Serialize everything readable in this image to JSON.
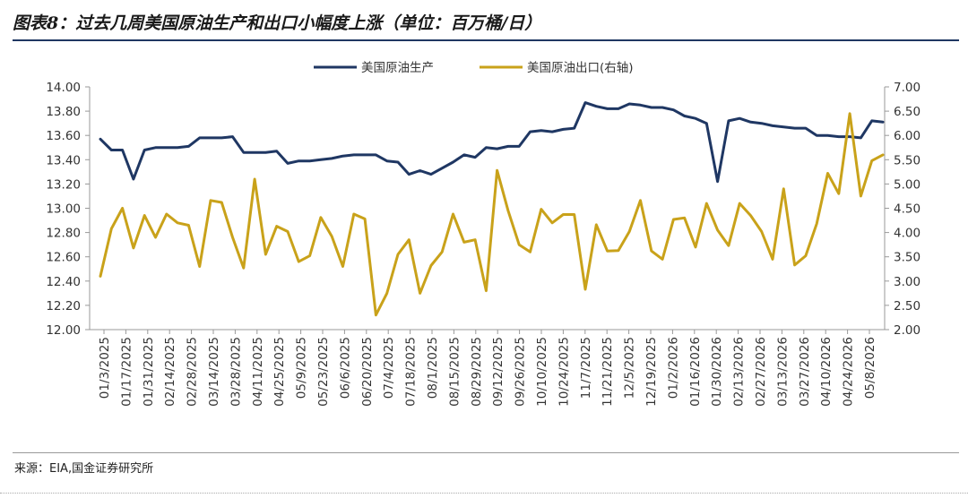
{
  "header": {
    "title": "图表8：过去几周美国原油生产和出口小幅度上涨（单位：百万桶/日）"
  },
  "footer": {
    "source": "来源：EIA,国金证券研究所"
  },
  "chart_data": {
    "type": "line",
    "legend_position": "top",
    "grid": false,
    "x_tick_labels": [
      "01/3/2025",
      "01/17/2025",
      "01/31/2025",
      "02/14/2025",
      "02/28/2025",
      "03/14/2025",
      "03/28/2025",
      "04/11/2025",
      "04/25/2025",
      "05/9/2025",
      "05/23/2025",
      "06/6/2025",
      "06/20/2025",
      "07/4/2025",
      "07/18/2025",
      "08/1/2025",
      "08/15/2025",
      "08/29/2025",
      "09/12/2025",
      "09/26/2025",
      "10/10/2025",
      "10/24/2025",
      "11/7/2025",
      "11/21/2025",
      "12/5/2025",
      "12/19/2025",
      "01/2/2026",
      "01/16/2026",
      "01/30/2026",
      "02/13/2026",
      "02/27/2026",
      "03/13/2026",
      "03/27/2026",
      "04/10/2026",
      "04/24/2026",
      "05/8/2026"
    ],
    "y_left": {
      "min": 12.0,
      "max": 14.0,
      "step": 0.2,
      "tick_labels": [
        "12.00",
        "12.20",
        "12.40",
        "12.60",
        "12.80",
        "13.00",
        "13.20",
        "13.40",
        "13.60",
        "13.80",
        "14.00"
      ]
    },
    "y_right": {
      "min": 2.0,
      "max": 7.0,
      "step": 0.5,
      "tick_labels": [
        "2.00",
        "2.50",
        "3.00",
        "3.50",
        "4.00",
        "4.50",
        "5.00",
        "5.50",
        "6.00",
        "6.50",
        "7.00"
      ]
    },
    "series": [
      {
        "name": "美国原油生产",
        "axis": "left",
        "color": "#1f3763",
        "values": [
          13.57,
          13.48,
          13.48,
          13.24,
          13.48,
          13.5,
          13.5,
          13.5,
          13.51,
          13.58,
          13.58,
          13.58,
          13.59,
          13.46,
          13.46,
          13.46,
          13.47,
          13.37,
          13.39,
          13.39,
          13.4,
          13.41,
          13.43,
          13.44,
          13.44,
          13.44,
          13.39,
          13.38,
          13.28,
          13.31,
          13.28,
          13.33,
          13.38,
          13.44,
          13.42,
          13.5,
          13.49,
          13.51,
          13.51,
          13.63,
          13.64,
          13.63,
          13.65,
          13.66,
          13.87,
          13.84,
          13.82,
          13.82,
          13.86,
          13.85,
          13.83,
          13.83,
          13.81,
          13.76,
          13.74,
          13.7,
          13.22,
          13.72,
          13.74,
          13.71,
          13.7,
          13.68,
          13.67,
          13.66,
          13.66,
          13.6,
          13.6,
          13.59,
          13.59,
          13.58,
          13.72,
          13.71
        ]
      },
      {
        "name": "美国原油出口(右轴)",
        "axis": "right",
        "color": "#c9a21a",
        "values": [
          3.1,
          4.08,
          4.5,
          3.68,
          4.35,
          3.9,
          4.38,
          4.2,
          4.15,
          3.3,
          4.66,
          4.62,
          3.9,
          3.27,
          5.1,
          3.55,
          4.13,
          4.02,
          3.4,
          3.52,
          4.31,
          3.92,
          3.3,
          4.38,
          4.28,
          2.3,
          2.75,
          3.55,
          3.85,
          2.75,
          3.32,
          3.6,
          4.38,
          3.8,
          3.85,
          2.8,
          5.28,
          4.45,
          3.75,
          3.6,
          4.48,
          4.2,
          4.37,
          4.37,
          2.83,
          4.16,
          3.62,
          3.63,
          4.02,
          4.66,
          3.62,
          3.45,
          4.27,
          4.3,
          3.7,
          4.6,
          4.05,
          3.73,
          4.6,
          4.35,
          4.02,
          3.45,
          4.9,
          3.33,
          3.52,
          4.18,
          5.22,
          4.8,
          6.45,
          4.75,
          5.48,
          5.6
        ]
      }
    ]
  }
}
